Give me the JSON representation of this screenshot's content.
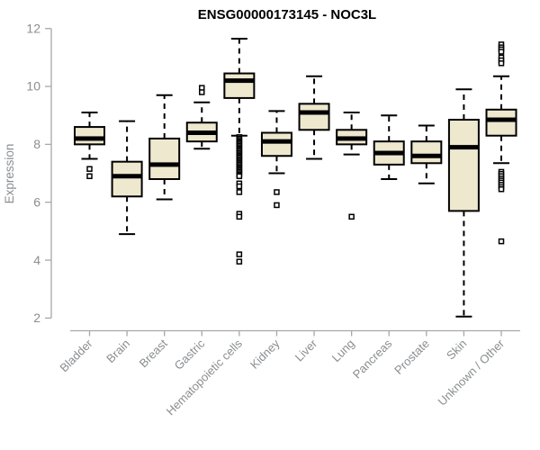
{
  "title": "ENSG00000173145 - NOC3L",
  "colors": {
    "box_fill": "#EEE8CF",
    "box_stroke": "#000000",
    "median": "#000000",
    "whisker": "#000000",
    "outlier_stroke": "#000000",
    "outlier_fill": "#ffffff",
    "axis": "#a8a8a8",
    "tick_label": "#8a8d90",
    "title_color": "#000000",
    "background": "#ffffff"
  },
  "chart_data": {
    "type": "boxplot",
    "title": "ENSG00000173145 - NOC3L",
    "xlabel": "",
    "ylabel": "Expression",
    "ylim": [
      2,
      12
    ],
    "yticks": [
      2,
      4,
      6,
      8,
      10,
      12
    ],
    "grid": false,
    "legend": false,
    "categories": [
      "Bladder",
      "Brain",
      "Breast",
      "Gastric",
      "Hematopoietic cells",
      "Kidney",
      "Liver",
      "Lung",
      "Pancreas",
      "Prostate",
      "Skin",
      "Unknown / Other"
    ],
    "boxes": [
      {
        "name": "Bladder",
        "low": 7.5,
        "q1": 8.0,
        "median": 8.2,
        "q3": 8.6,
        "high": 9.1,
        "outliers": [
          7.15,
          6.9
        ]
      },
      {
        "name": "Brain",
        "low": 4.9,
        "q1": 6.2,
        "median": 6.9,
        "q3": 7.4,
        "high": 8.8,
        "outliers": []
      },
      {
        "name": "Breast",
        "low": 6.1,
        "q1": 6.8,
        "median": 7.3,
        "q3": 8.2,
        "high": 9.7,
        "outliers": []
      },
      {
        "name": "Gastric",
        "low": 7.85,
        "q1": 8.1,
        "median": 8.4,
        "q3": 8.75,
        "high": 9.45,
        "outliers": [
          9.95,
          9.8
        ]
      },
      {
        "name": "Hematopoietic cells",
        "low": 8.3,
        "q1": 9.6,
        "median": 10.2,
        "q3": 10.45,
        "high": 11.65,
        "outliers": [
          8.25,
          8.2,
          8.15,
          8.1,
          8.05,
          8.0,
          7.95,
          7.9,
          7.85,
          7.8,
          7.75,
          7.7,
          7.65,
          7.6,
          7.55,
          7.5,
          7.45,
          7.4,
          7.35,
          7.3,
          7.25,
          7.2,
          7.15,
          7.1,
          7.05,
          7.0,
          6.95,
          6.9,
          6.65,
          6.55,
          6.35,
          5.6,
          5.5,
          4.2,
          3.95
        ]
      },
      {
        "name": "Kidney",
        "low": 7.0,
        "q1": 7.6,
        "median": 8.1,
        "q3": 8.4,
        "high": 9.15,
        "outliers": [
          6.35,
          5.9
        ]
      },
      {
        "name": "Liver",
        "low": 7.5,
        "q1": 8.5,
        "median": 9.1,
        "q3": 9.4,
        "high": 10.35,
        "outliers": []
      },
      {
        "name": "Lung",
        "low": 7.65,
        "q1": 8.0,
        "median": 8.2,
        "q3": 8.5,
        "high": 9.1,
        "outliers": [
          5.5
        ]
      },
      {
        "name": "Pancreas",
        "low": 6.8,
        "q1": 7.3,
        "median": 7.7,
        "q3": 8.1,
        "high": 9.0,
        "outliers": []
      },
      {
        "name": "Prostate",
        "low": 6.65,
        "q1": 7.35,
        "median": 7.6,
        "q3": 8.1,
        "high": 8.65,
        "outliers": []
      },
      {
        "name": "Skin",
        "low": 2.05,
        "q1": 5.7,
        "median": 7.9,
        "q3": 8.85,
        "high": 9.9,
        "outliers": []
      },
      {
        "name": "Unknown / Other",
        "low": 7.35,
        "q1": 8.3,
        "median": 8.85,
        "q3": 9.2,
        "high": 10.35,
        "outliers": [
          11.45,
          11.35,
          11.28,
          11.2,
          11.0,
          10.9,
          10.8,
          7.05,
          6.98,
          6.9,
          6.82,
          6.75,
          6.68,
          6.6,
          6.52,
          6.45,
          4.65
        ]
      }
    ]
  }
}
